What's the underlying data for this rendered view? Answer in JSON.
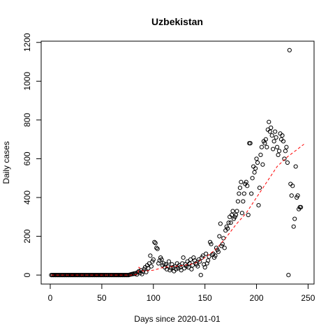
{
  "chart_data": {
    "type": "scatter",
    "title": "Uzbekistan",
    "xlabel": "Days since 2020-01-01",
    "ylabel": "Daily cases",
    "xlim": [
      -8.8,
      255.8
    ],
    "ylim": [
      -46.4,
      1206.4
    ],
    "xticks": [
      0,
      50,
      100,
      150,
      200,
      250
    ],
    "yticks": [
      0,
      200,
      400,
      600,
      800,
      1000,
      1200
    ],
    "series": [
      {
        "type": "scatter",
        "color": "#000000",
        "x": [
          1,
          2,
          3,
          4,
          5,
          6,
          7,
          8,
          9,
          10,
          11,
          12,
          13,
          14,
          15,
          16,
          17,
          18,
          19,
          20,
          21,
          22,
          23,
          24,
          25,
          26,
          27,
          28,
          29,
          30,
          31,
          32,
          33,
          34,
          35,
          36,
          37,
          38,
          39,
          40,
          41,
          42,
          43,
          44,
          45,
          46,
          47,
          48,
          49,
          50,
          51,
          52,
          53,
          54,
          55,
          56,
          57,
          58,
          59,
          60,
          61,
          62,
          63,
          64,
          65,
          66,
          67,
          68,
          69,
          70,
          71,
          72,
          73,
          74,
          75,
          76,
          77,
          78,
          79,
          80,
          81,
          82,
          83,
          84,
          85,
          86,
          87,
          88,
          89,
          90,
          91,
          92,
          93,
          94,
          95,
          96,
          97,
          98,
          99,
          100,
          101,
          102,
          103,
          104,
          105,
          106,
          107,
          108,
          109,
          110,
          111,
          112,
          113,
          114,
          115,
          116,
          117,
          118,
          119,
          120,
          121,
          122,
          123,
          124,
          125,
          126,
          127,
          128,
          129,
          130,
          131,
          132,
          133,
          134,
          135,
          136,
          137,
          138,
          139,
          140,
          141,
          142,
          143,
          144,
          145,
          146,
          147,
          148,
          149,
          150,
          151,
          152,
          153,
          154,
          155,
          156,
          157,
          158,
          159,
          160,
          161,
          162,
          163,
          164,
          165,
          166,
          167,
          168,
          169,
          170,
          171,
          172,
          173,
          174,
          175,
          176,
          177,
          178,
          179,
          180,
          181,
          182,
          183,
          184,
          185,
          186,
          187,
          188,
          189,
          190,
          191,
          192,
          193,
          194,
          195,
          196,
          197,
          198,
          199,
          200,
          201,
          202,
          203,
          204,
          205,
          206,
          207,
          208,
          209,
          210,
          211,
          212,
          213,
          214,
          215,
          216,
          217,
          218,
          219,
          220,
          221,
          222,
          223,
          224,
          225,
          226,
          227,
          228,
          229,
          230,
          231,
          232,
          233,
          234,
          235,
          236,
          237,
          238,
          239,
          240,
          241,
          242,
          243
        ],
        "values": [
          0,
          0,
          0,
          0,
          0,
          0,
          0,
          0,
          0,
          0,
          0,
          0,
          0,
          0,
          0,
          0,
          0,
          0,
          0,
          0,
          0,
          0,
          0,
          0,
          0,
          0,
          0,
          0,
          0,
          0,
          0,
          0,
          0,
          0,
          0,
          0,
          0,
          0,
          0,
          0,
          0,
          0,
          0,
          0,
          0,
          0,
          0,
          0,
          0,
          0,
          0,
          0,
          0,
          0,
          0,
          0,
          0,
          0,
          0,
          0,
          0,
          0,
          0,
          0,
          0,
          0,
          0,
          0,
          0,
          0,
          0,
          0,
          0,
          0,
          0,
          0,
          2,
          3,
          5,
          5,
          8,
          6,
          10,
          3,
          15,
          20,
          10,
          25,
          5,
          18,
          30,
          40,
          15,
          50,
          35,
          60,
          100,
          45,
          70,
          80,
          170,
          165,
          140,
          135,
          60,
          75,
          90,
          80,
          50,
          60,
          40,
          55,
          30,
          45,
          70,
          25,
          35,
          55,
          40,
          20,
          45,
          30,
          60,
          35,
          50,
          40,
          25,
          60,
          90,
          35,
          55,
          45,
          70,
          40,
          60,
          80,
          30,
          50,
          90,
          75,
          60,
          55,
          45,
          80,
          70,
          0,
          90,
          100,
          55,
          40,
          110,
          60,
          75,
          95,
          170,
          160,
          105,
          110,
          90,
          100,
          140,
          130,
          120,
          200,
          265,
          150,
          160,
          190,
          140,
          230,
          250,
          240,
          270,
          300,
          270,
          310,
          330,
          290,
          300,
          310,
          330,
          380,
          420,
          450,
          480,
          320,
          380,
          420,
          470,
          480,
          460,
          310,
          680,
          680,
          420,
          500,
          560,
          530,
          550,
          600,
          580,
          360,
          450,
          620,
          660,
          570,
          690,
          680,
          700,
          660,
          750,
          790,
          740,
          760,
          720,
          650,
          690,
          740,
          710,
          660,
          620,
          640,
          730,
          700,
          720,
          690,
          600,
          640,
          660,
          580,
          0,
          1160,
          470,
          410,
          460,
          250,
          290,
          560,
          400,
          410,
          340,
          350,
          350
        ]
      },
      {
        "type": "line",
        "color": "#ff0000",
        "x": [
          1,
          80,
          85,
          86,
          90,
          100,
          110,
          120,
          130,
          140,
          150,
          160,
          170,
          180,
          190,
          200,
          210,
          220,
          230,
          240,
          246
        ],
        "values": [
          0,
          0,
          5,
          40,
          20,
          25,
          40,
          45,
          50,
          60,
          90,
          130,
          190,
          260,
          320,
          400,
          480,
          560,
          610,
          650,
          675
        ]
      }
    ]
  }
}
